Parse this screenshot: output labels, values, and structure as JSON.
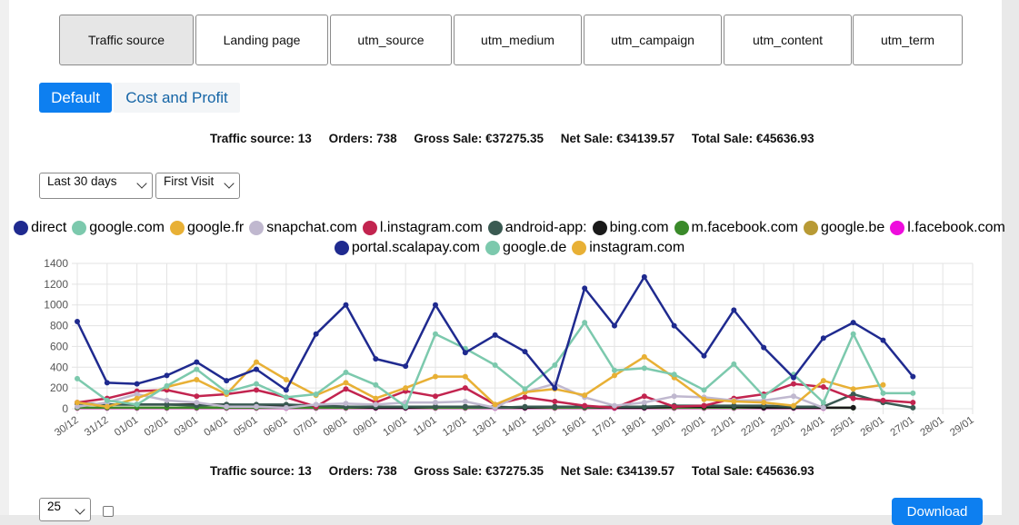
{
  "tabs": [
    {
      "label": "Traffic source",
      "active": true
    },
    {
      "label": "Landing page",
      "active": false
    },
    {
      "label": "utm_source",
      "active": false
    },
    {
      "label": "utm_medium",
      "active": false
    },
    {
      "label": "utm_campaign",
      "active": false
    },
    {
      "label": "utm_content",
      "active": false
    },
    {
      "label": "utm_term",
      "active": false
    }
  ],
  "modes": {
    "default_label": "Default",
    "cost_label": "Cost and Profit"
  },
  "summary": {
    "traffic_source": "Traffic source: 13",
    "orders": "Orders: 738",
    "gross_sale": "Gross Sale: €37275.35",
    "net_sale": "Net Sale: €34139.57",
    "total_sale": "Total Sale: €45636.93"
  },
  "filters": {
    "period": "Last 30 days",
    "visit": "First Visit"
  },
  "footer": {
    "per_page": "25",
    "download_label": "Download"
  },
  "chart_data": {
    "type": "line",
    "x": [
      "30/12",
      "31/12",
      "01/01",
      "02/01",
      "03/01",
      "04/01",
      "05/01",
      "06/01",
      "07/01",
      "08/01",
      "09/01",
      "10/01",
      "11/01",
      "12/01",
      "13/01",
      "14/01",
      "15/01",
      "16/01",
      "17/01",
      "18/01",
      "19/01",
      "20/01",
      "21/01",
      "22/01",
      "23/01",
      "24/01",
      "25/01",
      "26/01",
      "27/01",
      "28/01",
      "29/01"
    ],
    "ylim": [
      0,
      1400
    ],
    "yticks": [
      0,
      200,
      400,
      600,
      800,
      1000,
      1200,
      1400
    ],
    "grid": true,
    "legend_position": "top",
    "series": [
      {
        "name": "direct",
        "color": "#1f2a8f",
        "values": [
          840,
          250,
          240,
          320,
          450,
          270,
          380,
          180,
          720,
          1000,
          480,
          410,
          1000,
          540,
          710,
          550,
          200,
          1160,
          800,
          1270,
          800,
          510,
          950,
          590,
          300,
          680,
          830,
          660,
          310,
          null,
          null
        ]
      },
      {
        "name": "google.com",
        "color": "#7cc9ad",
        "values": [
          290,
          80,
          40,
          220,
          380,
          160,
          240,
          110,
          140,
          350,
          230,
          20,
          720,
          580,
          420,
          190,
          420,
          830,
          370,
          390,
          330,
          180,
          430,
          120,
          330,
          60,
          720,
          150,
          150,
          null,
          null
        ]
      },
      {
        "name": "google.fr",
        "color": "#e8b035",
        "values": [
          60,
          20,
          100,
          210,
          280,
          140,
          450,
          280,
          130,
          250,
          100,
          200,
          310,
          310,
          40,
          160,
          190,
          130,
          320,
          500,
          300,
          90,
          70,
          60,
          30,
          270,
          190,
          230,
          null,
          null,
          null
        ]
      },
      {
        "name": "snapchat.com",
        "color": "#c0b8cf",
        "values": [
          20,
          60,
          140,
          80,
          60,
          20,
          20,
          10,
          40,
          50,
          40,
          60,
          60,
          70,
          10,
          160,
          240,
          110,
          30,
          60,
          120,
          110,
          80,
          80,
          120,
          10,
          null,
          null,
          null,
          null,
          null
        ]
      },
      {
        "name": "l.instagram.com",
        "color": "#c2244f",
        "values": [
          60,
          100,
          170,
          180,
          120,
          140,
          180,
          110,
          20,
          190,
          60,
          170,
          120,
          200,
          40,
          110,
          70,
          30,
          10,
          120,
          20,
          30,
          100,
          140,
          240,
          210,
          100,
          80,
          60,
          null,
          null
        ]
      },
      {
        "name": "android-app:",
        "color": "#3a5a52",
        "values": [
          50,
          40,
          40,
          40,
          30,
          40,
          40,
          40,
          30,
          20,
          20,
          20,
          20,
          20,
          10,
          20,
          20,
          20,
          20,
          20,
          30,
          30,
          30,
          30,
          20,
          20,
          140,
          60,
          10,
          null,
          null
        ]
      },
      {
        "name": "bing.com",
        "color": "#1a1a1a",
        "values": [
          50,
          40,
          40,
          40,
          40,
          40,
          30,
          30,
          30,
          20,
          10,
          10,
          20,
          20,
          20,
          10,
          20,
          20,
          10,
          10,
          20,
          20,
          20,
          10,
          10,
          10,
          10,
          null,
          null,
          null,
          null
        ]
      },
      {
        "name": "m.facebook.com",
        "color": "#3a8a2a",
        "values": [
          10,
          10,
          10,
          10,
          10,
          10,
          10,
          10,
          10,
          10,
          10,
          10,
          10,
          10,
          10,
          10,
          10,
          10,
          10,
          10,
          10,
          10,
          10,
          10,
          10,
          10,
          10,
          null,
          null,
          null,
          null
        ]
      },
      {
        "name": "google.be",
        "color": "#b89a35",
        "values": [
          10,
          10,
          10,
          10,
          10,
          10,
          10,
          10,
          10,
          10,
          10,
          10,
          10,
          10,
          10,
          10,
          10,
          10,
          10,
          10,
          10,
          10,
          10,
          10,
          10,
          10,
          null,
          null,
          null,
          null,
          null
        ]
      },
      {
        "name": "l.facebook.com",
        "color": "#ee0cdd",
        "values": [
          5,
          5,
          5,
          5,
          5,
          5,
          5,
          5,
          5,
          5,
          5,
          5,
          5,
          5,
          5,
          5,
          5,
          5,
          5,
          5,
          5,
          5,
          5,
          5,
          5,
          5,
          null,
          null,
          null,
          null,
          null
        ]
      },
      {
        "name": "portal.scalapay.com",
        "color": "#1f2a8f",
        "values": [
          null,
          null,
          null,
          null,
          null,
          null,
          null,
          null,
          null,
          null,
          null,
          null,
          null,
          null,
          null,
          null,
          null,
          null,
          null,
          null,
          null,
          null,
          null,
          null,
          null,
          null,
          null,
          null,
          null,
          null,
          null
        ]
      },
      {
        "name": "google.de",
        "color": "#7cc9ad",
        "values": [
          null,
          null,
          null,
          null,
          null,
          null,
          null,
          null,
          null,
          null,
          null,
          null,
          null,
          null,
          null,
          null,
          null,
          null,
          null,
          null,
          null,
          null,
          null,
          null,
          null,
          null,
          null,
          null,
          null,
          null,
          null
        ]
      },
      {
        "name": "instagram.com",
        "color": "#e8b035",
        "values": [
          null,
          null,
          null,
          null,
          null,
          null,
          null,
          null,
          null,
          null,
          null,
          null,
          null,
          null,
          null,
          null,
          null,
          null,
          null,
          null,
          null,
          null,
          null,
          null,
          null,
          null,
          null,
          null,
          null,
          null,
          null
        ]
      }
    ]
  }
}
